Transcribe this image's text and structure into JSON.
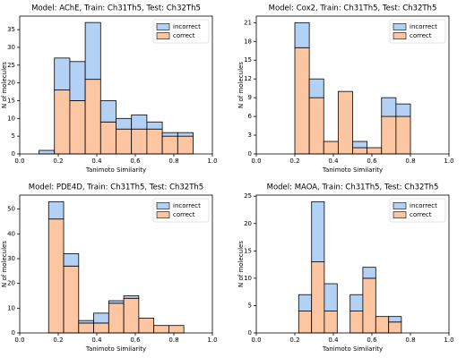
{
  "chart_data": [
    {
      "type": "histogram",
      "title": "Model: AChE, Train: Ch31Th5, Test: Ch32Th5",
      "xlabel": "Tanimoto Similarity",
      "ylabel": "N of molecules",
      "bins": [
        0.1,
        0.18,
        0.26,
        0.34,
        0.42,
        0.5,
        0.58,
        0.66,
        0.74,
        0.82,
        0.9
      ],
      "series": [
        {
          "name": "incorrect",
          "color": "#b3d1f5",
          "values": [
            1,
            9,
            11,
            16,
            6,
            3,
            4,
            2,
            1,
            1
          ]
        },
        {
          "name": "correct",
          "color": "#fcc6a2",
          "values": [
            0,
            18,
            15,
            21,
            9,
            7,
            7,
            7,
            5,
            5
          ]
        }
      ],
      "xlim": [
        0,
        1
      ],
      "xticks": [
        {
          "value": 0,
          "label": "0.0"
        },
        0.2,
        0.4,
        0.6,
        0.8,
        {
          "value": 1,
          "label": "1.0"
        }
      ],
      "ylim": [
        0,
        38.8
      ],
      "yticks": [
        0,
        5,
        10,
        15,
        20,
        25,
        30,
        35
      ],
      "legend": "upper right"
    },
    {
      "type": "histogram",
      "title": "Model: Cox2, Train: Ch31Th5, Test: Ch32Th5",
      "xlabel": "Tanimoto Similarity",
      "ylabel": "N of molecules",
      "bins": [
        0.2,
        0.275,
        0.35,
        0.425,
        0.5,
        0.575,
        0.65,
        0.725,
        0.8
      ],
      "series": [
        {
          "name": "incorrect",
          "color": "#b3d1f5",
          "values": [
            4,
            3,
            0,
            0,
            1,
            0,
            3,
            2
          ]
        },
        {
          "name": "correct",
          "color": "#fcc6a2",
          "values": [
            17,
            9,
            2,
            10,
            1,
            1,
            6,
            6
          ]
        }
      ],
      "xlim": [
        0,
        1
      ],
      "xticks": [
        {
          "value": 0,
          "label": "0.0"
        },
        0.2,
        0.4,
        0.6,
        0.8,
        {
          "value": 1,
          "label": "1.0"
        }
      ],
      "ylim": [
        0,
        22.05
      ],
      "yticks": [
        0,
        3,
        6,
        9,
        12,
        15,
        18,
        21
      ],
      "legend": "upper right"
    },
    {
      "type": "histogram",
      "title": "Model: PDE4D, Train: Ch31Th5, Test: Ch32Th5",
      "xlabel": "Tanimoto Similarity",
      "ylabel": "N of molecules",
      "bins": [
        0.15,
        0.228,
        0.306,
        0.384,
        0.462,
        0.54,
        0.618,
        0.696,
        0.774,
        0.852
      ],
      "series": [
        {
          "name": "incorrect",
          "color": "#b3d1f5",
          "values": [
            7,
            5,
            1,
            4,
            1,
            1,
            0,
            0,
            0
          ]
        },
        {
          "name": "correct",
          "color": "#fcc6a2",
          "values": [
            46,
            27,
            4,
            4,
            12,
            14,
            6,
            3,
            3
          ]
        }
      ],
      "xlim": [
        0,
        1
      ],
      "xticks": [
        {
          "value": 0,
          "label": "0.0"
        },
        0.2,
        0.4,
        0.6,
        0.8,
        {
          "value": 1,
          "label": "1.0"
        }
      ],
      "ylim": [
        0,
        55.65
      ],
      "yticks": [
        0,
        10,
        20,
        30,
        40,
        50
      ],
      "legend": "upper right"
    },
    {
      "type": "histogram",
      "title": "Model: MAOA, Train: Ch31Th5, Test: Ch32Th5",
      "xlabel": "Tanimoto Similarity",
      "ylabel": "N of molecules",
      "bins": [
        0.22,
        0.287,
        0.353,
        0.42,
        0.487,
        0.553,
        0.62,
        0.687,
        0.753
      ],
      "series": [
        {
          "name": "incorrect",
          "color": "#b3d1f5",
          "values": [
            3,
            11,
            5,
            0,
            3,
            2,
            0,
            1
          ]
        },
        {
          "name": "correct",
          "color": "#fcc6a2",
          "values": [
            4,
            13,
            4,
            0,
            4,
            10,
            3,
            2
          ]
        }
      ],
      "xlim": [
        0,
        1
      ],
      "xticks": [
        {
          "value": 0,
          "label": "0.0"
        },
        0.2,
        0.4,
        0.6,
        0.8,
        {
          "value": 1,
          "label": "1.0"
        }
      ],
      "ylim": [
        0,
        25.2
      ],
      "yticks": [
        0,
        5,
        10,
        15,
        20,
        25
      ],
      "legend": "upper right"
    }
  ]
}
